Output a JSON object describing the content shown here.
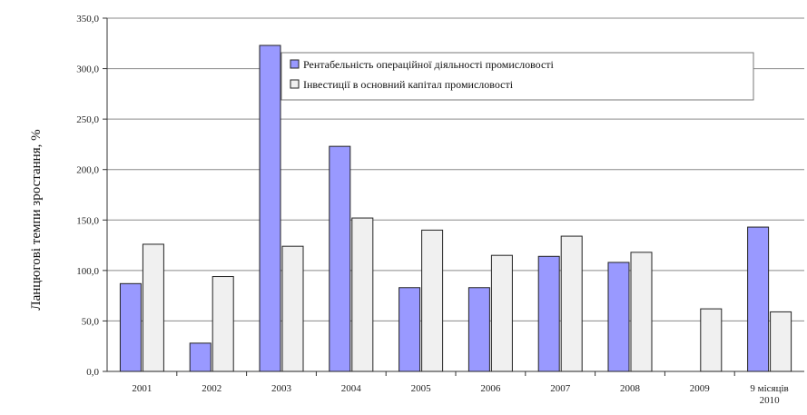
{
  "chart_data": {
    "type": "bar",
    "ylabel": "Ланцюгові темпи зростання, %",
    "ylim": [
      0,
      350
    ],
    "ytick_step": 50,
    "y_tick_labels": [
      "0,0",
      "50,0",
      "100,0",
      "150,0",
      "200,0",
      "250,0",
      "300,0",
      "350,0"
    ],
    "grid": true,
    "legend_position": "top-right",
    "categories": [
      "2001",
      "2002",
      "2003",
      "2004",
      "2005",
      "2006",
      "2007",
      "2008",
      "2009",
      "9 місяців 2010"
    ],
    "series": [
      {
        "name": "Рентабельність операційної діяльності промисловості",
        "color": "#9999ff",
        "values": [
          87.0,
          28.0,
          323.0,
          223.0,
          83.0,
          83.0,
          114.0,
          108.0,
          null,
          143.0
        ]
      },
      {
        "name": "Інвестиції в основний капітал промисловості",
        "color": "#f0f0f0",
        "values": [
          126.0,
          94.0,
          124.0,
          152.0,
          140.0,
          115.0,
          134.0,
          118.0,
          62.0,
          59.0
        ]
      }
    ]
  }
}
